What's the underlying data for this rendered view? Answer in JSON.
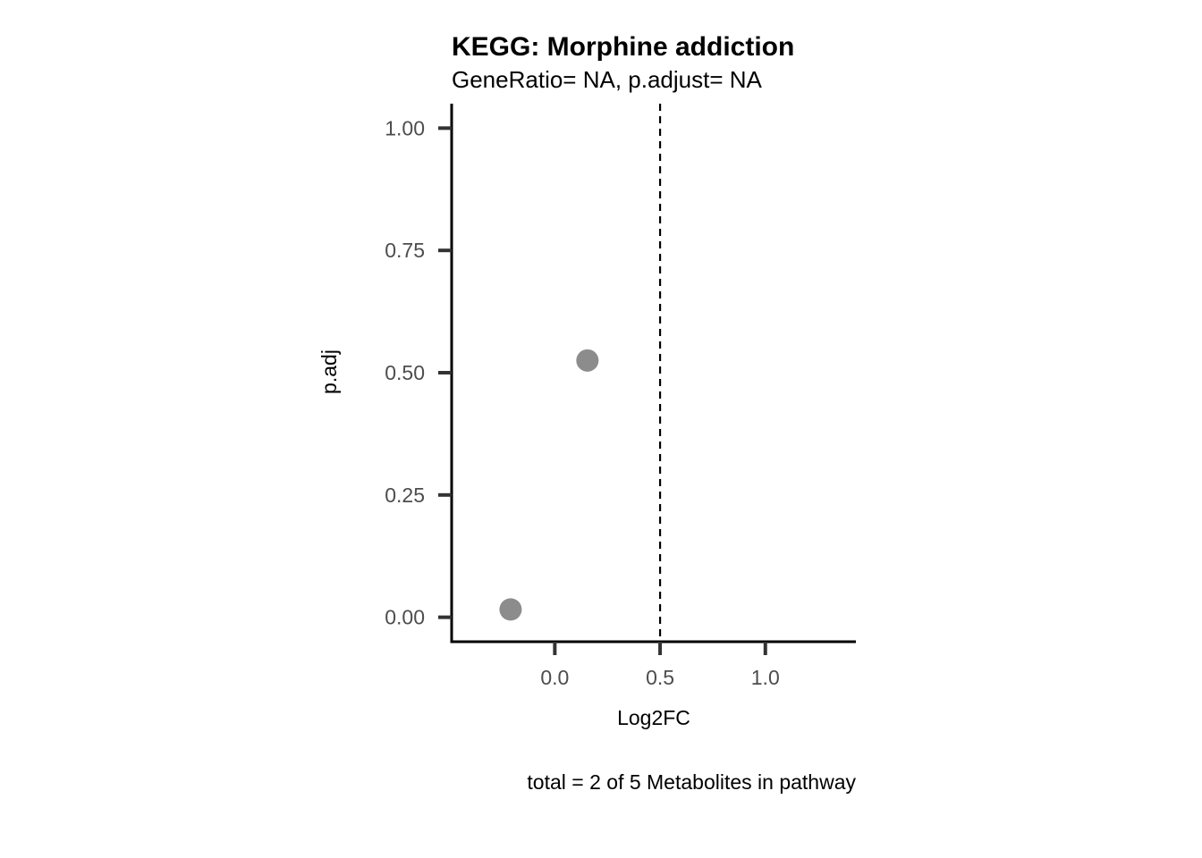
{
  "chart_data": {
    "type": "scatter",
    "title": "KEGG: Morphine addiction",
    "subtitle": "GeneRatio= NA, p.adjust= NA",
    "xlabel": "Log2FC",
    "ylabel": "p.adj",
    "caption": "total = 2 of 5 Metabolites in pathway",
    "xlim": [
      -0.49,
      1.43
    ],
    "ylim": [
      -0.05,
      1.05
    ],
    "x_ticks": [
      {
        "value": 0.0,
        "label": "0.0"
      },
      {
        "value": 0.5,
        "label": "0.5"
      },
      {
        "value": 1.0,
        "label": "1.0"
      }
    ],
    "y_ticks": [
      {
        "value": 0.0,
        "label": "0.00"
      },
      {
        "value": 0.25,
        "label": "0.25"
      },
      {
        "value": 0.5,
        "label": "0.50"
      },
      {
        "value": 0.75,
        "label": "0.75"
      },
      {
        "value": 1.0,
        "label": "1.00"
      }
    ],
    "reference_line": {
      "axis": "x",
      "value": 0.5,
      "style": "dashed"
    },
    "series": [
      {
        "x": [
          -0.21,
          0.155
        ],
        "y": [
          0.016,
          0.525
        ],
        "color": "#8c8c8c"
      }
    ],
    "grid": false
  }
}
